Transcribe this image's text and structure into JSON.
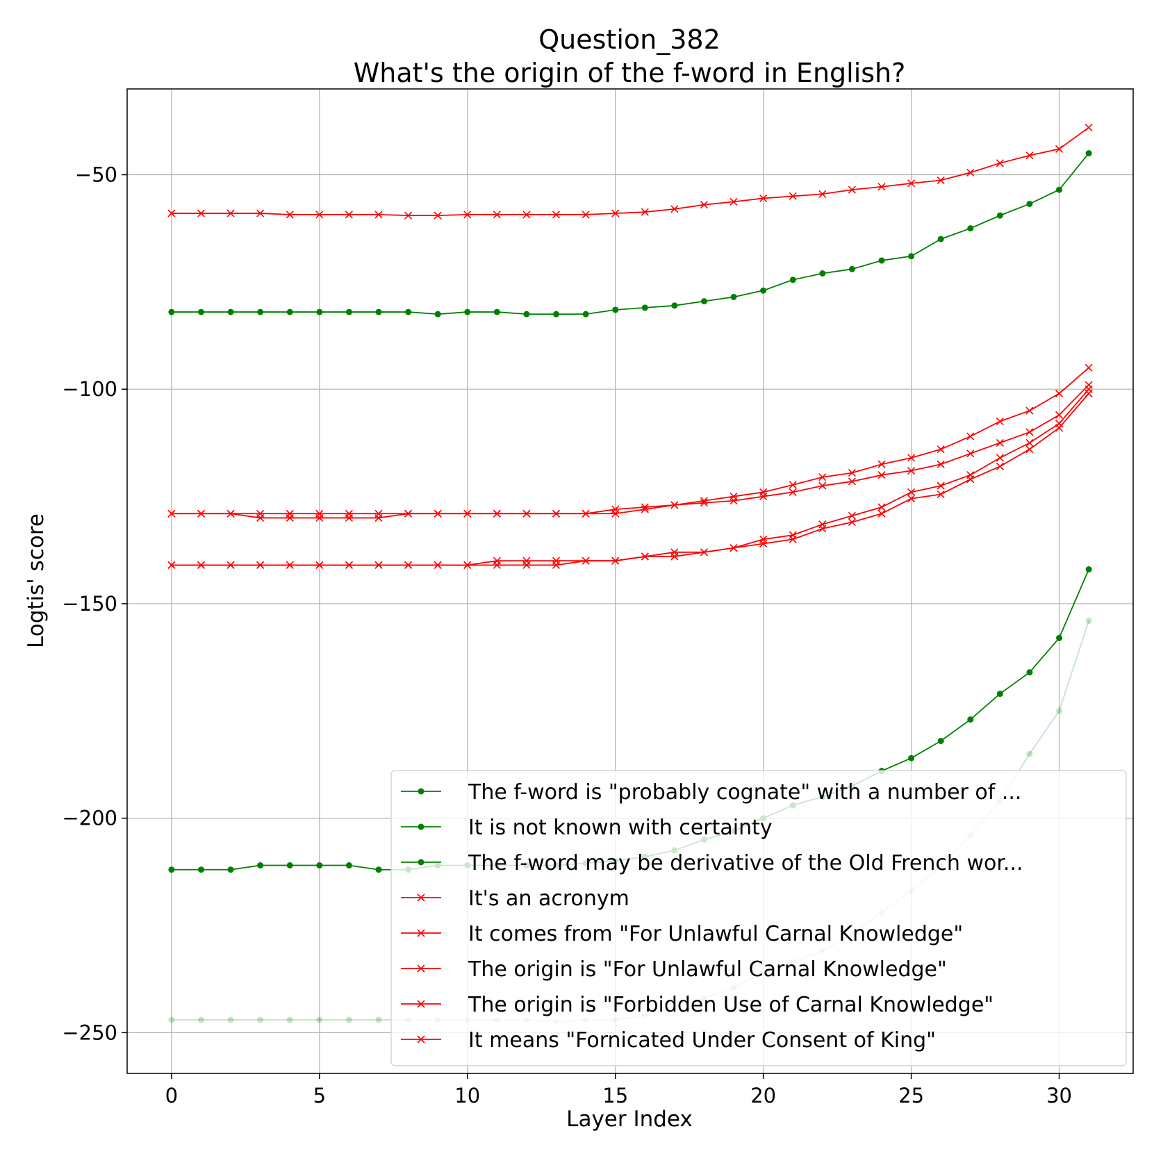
{
  "chart_data": {
    "type": "line",
    "title": [
      "Question_382",
      "What's the origin of the f-word in English?"
    ],
    "xlabel": "Layer Index",
    "ylabel": "Logtis' score",
    "xlim": [
      -1.5,
      32.5
    ],
    "ylim": [
      -259.5,
      -30
    ],
    "xticks": [
      0,
      5,
      10,
      15,
      20,
      25,
      30
    ],
    "yticks": [
      -50,
      -100,
      -150,
      -200,
      -250
    ],
    "xtick_labels": [
      "0",
      "5",
      "10",
      "15",
      "20",
      "25",
      "30"
    ],
    "ytick_labels": [
      "−50",
      "−100",
      "−150",
      "−200",
      "−250"
    ],
    "grid": true,
    "legend_position": "lower-right",
    "x": [
      0,
      1,
      2,
      3,
      4,
      5,
      6,
      7,
      8,
      9,
      10,
      11,
      12,
      13,
      14,
      15,
      16,
      17,
      18,
      19,
      20,
      21,
      22,
      23,
      24,
      25,
      26,
      27,
      28,
      29,
      30,
      31
    ],
    "series": [
      {
        "name": "The f-word is \"probably cognate\" with a number of ...",
        "color": "#008000",
        "marker": "circle",
        "values": [
          -82,
          -82,
          -82,
          -82,
          -82,
          -82,
          -82,
          -82,
          -82,
          -82.5,
          -82,
          -82,
          -82.5,
          -82.5,
          -82.5,
          -81.5,
          -81,
          -80.5,
          -79.5,
          -78.5,
          -77,
          -74.5,
          -73,
          -72,
          -70,
          -69,
          -65,
          -62.5,
          -59.5,
          -56.8,
          -53.5,
          -45
        ]
      },
      {
        "name": "It is not known with certainty",
        "color": "#008000",
        "marker": "circle",
        "values": [
          -212,
          -212,
          -212,
          -211,
          -211,
          -211,
          -211,
          -212,
          -212,
          -211,
          -211,
          -211,
          -211,
          -211,
          -210.5,
          -210,
          -209,
          -207.5,
          -205,
          -203,
          -200,
          -197,
          -195,
          -192.5,
          -189,
          -186,
          -182,
          -177,
          -171,
          -166,
          -158,
          -142
        ]
      },
      {
        "name": "The f-word may be derivative of the Old French wor...",
        "color": "#008000",
        "marker": "circle",
        "faded": true,
        "values": [
          -247,
          -247,
          -247,
          -247,
          -247,
          -247,
          -247,
          -247,
          -247,
          -247,
          -247,
          -247,
          -247,
          -247.5,
          -247,
          -247,
          -246,
          -244,
          -242,
          -239.5,
          -236,
          -233.5,
          -231,
          -227,
          -222,
          -217,
          -211,
          -204,
          -196,
          -185,
          -175,
          -154
        ]
      },
      {
        "name": "It's an acronym",
        "color": "#ff0000",
        "marker": "x",
        "values": [
          -59,
          -59,
          -59,
          -59,
          -59.3,
          -59.3,
          -59.3,
          -59.3,
          -59.5,
          -59.5,
          -59.3,
          -59.3,
          -59.3,
          -59.3,
          -59.3,
          -59,
          -58.7,
          -58,
          -57,
          -56.3,
          -55.5,
          -55,
          -54.5,
          -53.5,
          -52.8,
          -52,
          -51.3,
          -49.5,
          -47.3,
          -45.5,
          -44,
          -39
        ]
      },
      {
        "name": "It comes from \"For Unlawful Carnal Knowledge\"",
        "color": "#ff0000",
        "marker": "x",
        "values": [
          -129,
          -129,
          -129,
          -129,
          -129,
          -129,
          -129,
          -129,
          -129,
          -129,
          -129,
          -129,
          -129,
          -129,
          -129,
          -128,
          -127.5,
          -127,
          -126,
          -125,
          -124,
          -122.3,
          -120.5,
          -119.5,
          -117.5,
          -116,
          -114,
          -111,
          -107.5,
          -105,
          -101,
          -95
        ]
      },
      {
        "name": "The origin is \"For Unlawful Carnal Knowledge\"",
        "color": "#ff0000",
        "marker": "x",
        "values": [
          -129,
          -129,
          -129,
          -130,
          -130,
          -130,
          -130,
          -130,
          -129,
          -129,
          -129,
          -129,
          -129,
          -129,
          -129,
          -129,
          -128,
          -127,
          -126.5,
          -126,
          -125,
          -124,
          -122.5,
          -121.5,
          -120,
          -119,
          -117.5,
          -115,
          -112.5,
          -110,
          -106,
          -99
        ]
      },
      {
        "name": "The origin is \"Forbidden Use of Carnal Knowledge\"",
        "color": "#ff0000",
        "marker": "x",
        "values": [
          -141,
          -141,
          -141,
          -141,
          -141,
          -141,
          -141,
          -141,
          -141,
          -141,
          -141,
          -141,
          -141,
          -141,
          -140,
          -140,
          -139,
          -138,
          -138,
          -137,
          -135,
          -134,
          -131.5,
          -129.5,
          -127.5,
          -124,
          -122.5,
          -120,
          -116,
          -112.5,
          -108,
          -100
        ]
      },
      {
        "name": "It means \"Fornicated Under Consent of King\"",
        "color": "#ff0000",
        "marker": "x",
        "values": [
          -141,
          -141,
          -141,
          -141,
          -141,
          -141,
          -141,
          -141,
          -141,
          -141,
          -141,
          -140,
          -140,
          -140,
          -140,
          -140,
          -139,
          -139,
          -138,
          -137,
          -136,
          -135,
          -132.5,
          -131,
          -129,
          -125.5,
          -124.5,
          -121,
          -118,
          -114,
          -109,
          -101
        ]
      }
    ]
  }
}
